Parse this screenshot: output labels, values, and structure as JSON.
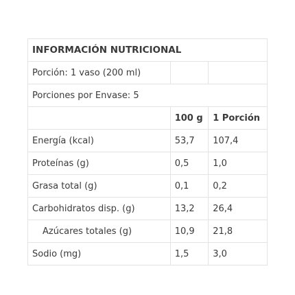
{
  "title": "INFORMACIÓN NUTRICIONAL",
  "serving": "Porción: 1 vaso (200 ml)",
  "servings_per_container": "Porciones por Envase: 5",
  "headers": {
    "per_100g": "100 g",
    "per_portion": "1 Porción"
  },
  "rows": [
    {
      "label": "Energía (kcal)",
      "per_100g": "53,7",
      "per_portion": "107,4"
    },
    {
      "label": "Proteínas (g)",
      "per_100g": "0,5",
      "per_portion": "1,0"
    },
    {
      "label": "Grasa total (g)",
      "per_100g": "0,1",
      "per_portion": "0,2"
    },
    {
      "label": "Carbohidratos disp. (g)",
      "per_100g": "13,2",
      "per_portion": "26,4"
    },
    {
      "label": "Azúcares totales (g)",
      "per_100g": "10,9",
      "per_portion": "21,8"
    },
    {
      "label": "Sodio (mg)",
      "per_100g": "1,5",
      "per_portion": "3,0"
    }
  ]
}
